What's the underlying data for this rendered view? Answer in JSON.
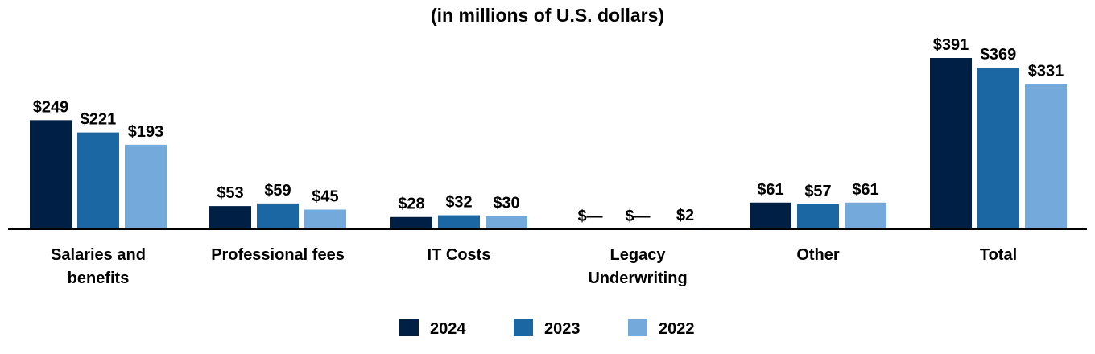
{
  "chart_data": {
    "type": "bar",
    "subtitle": "(in millions of U.S. dollars)",
    "categories": [
      [
        "Salaries and",
        "benefits"
      ],
      [
        "Professional fees"
      ],
      [
        "IT Costs"
      ],
      [
        "Legacy",
        "Underwriting"
      ],
      [
        "Other"
      ],
      [
        "Total"
      ]
    ],
    "series": [
      {
        "name": "2024",
        "color": "#001f45",
        "values": [
          249,
          53,
          28,
          0,
          61,
          391
        ],
        "labels": [
          "$249",
          "$53",
          "$28",
          "$—",
          "$61",
          "$391"
        ]
      },
      {
        "name": "2023",
        "color": "#1a67a3",
        "values": [
          221,
          59,
          32,
          0,
          57,
          369
        ],
        "labels": [
          "$221",
          "$59",
          "$32",
          "$—",
          "$57",
          "$369"
        ]
      },
      {
        "name": "2022",
        "color": "#74a9db",
        "values": [
          193,
          45,
          30,
          2,
          61,
          331
        ],
        "labels": [
          "$193",
          "$45",
          "$30",
          "$2",
          "$61",
          "$331"
        ]
      }
    ],
    "ylim": [
      0,
      400
    ],
    "legend_position": "bottom",
    "grid": false
  }
}
